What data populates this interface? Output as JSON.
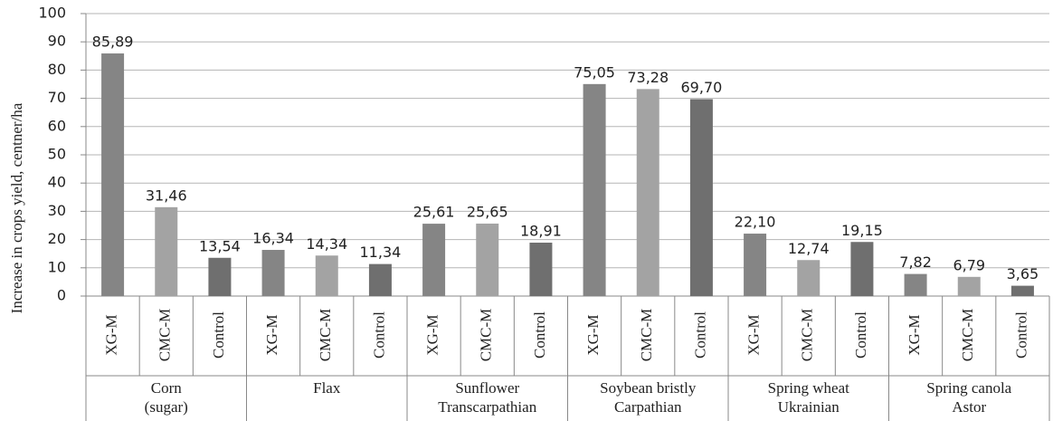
{
  "chart_data": {
    "type": "bar",
    "y_label": "Increase in crops yield, centner/ha",
    "categories": [
      [
        "Corn",
        "(sugar)"
      ],
      [
        "Flax"
      ],
      [
        "Sunflower",
        "Transcarpathian"
      ],
      [
        "Soybean bristly",
        "Carpathian"
      ],
      [
        "Spring wheat",
        "Ukrainian"
      ],
      [
        "Spring canola",
        "Astor"
      ]
    ],
    "series": [
      {
        "name": "XG-M",
        "color": "#858585",
        "values": [
          85.89,
          16.34,
          25.61,
          75.05,
          22.1,
          7.82
        ],
        "value_labels": [
          "85,89",
          "16,34",
          "25,61",
          "75,05",
          "22,10",
          "7,82"
        ]
      },
      {
        "name": "CMC-M",
        "color": "#a3a3a3",
        "values": [
          31.46,
          14.34,
          25.65,
          73.28,
          12.74,
          6.79
        ],
        "value_labels": [
          "31,46",
          "14,34",
          "25,65",
          "73,28",
          "12,74",
          "6,79"
        ]
      },
      {
        "name": "Control",
        "color": "#6f6f6f",
        "values": [
          13.54,
          11.34,
          18.91,
          69.7,
          19.15,
          3.65
        ],
        "value_labels": [
          "13,54",
          "11,34",
          "18,91",
          "69,70",
          "19,15",
          "3,65"
        ]
      }
    ],
    "ylim": [
      0,
      100
    ],
    "yticks": [
      0,
      10,
      20,
      30,
      40,
      50,
      60,
      70,
      80,
      90,
      100
    ],
    "grid": true
  }
}
